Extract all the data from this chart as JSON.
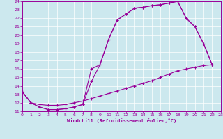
{
  "bg_color": "#cce8ee",
  "line_color": "#990099",
  "grid_color": "#ffffff",
  "xlabel": "Windchill (Refroidissement éolien,°C)",
  "xlim": [
    0,
    23
  ],
  "ylim": [
    11,
    24
  ],
  "xticks": [
    0,
    1,
    2,
    3,
    4,
    5,
    6,
    7,
    8,
    9,
    10,
    11,
    12,
    13,
    14,
    15,
    16,
    17,
    18,
    19,
    20,
    21,
    22,
    23
  ],
  "yticks": [
    11,
    12,
    13,
    14,
    15,
    16,
    17,
    18,
    19,
    20,
    21,
    22,
    23,
    24
  ],
  "curve1_x": [
    0,
    1,
    2,
    3,
    4,
    5,
    6,
    7,
    8,
    9,
    10,
    11,
    12,
    13,
    14,
    15,
    16,
    17,
    18,
    19,
    20,
    21,
    22
  ],
  "curve1_y": [
    13.3,
    12.0,
    11.5,
    11.2,
    11.2,
    11.3,
    11.5,
    11.8,
    14.5,
    16.5,
    19.5,
    21.8,
    22.5,
    23.2,
    23.3,
    23.5,
    23.6,
    23.8,
    24.0,
    22.0,
    21.0,
    19.0,
    16.5
  ],
  "curve2_x": [
    0,
    1,
    2,
    3,
    4,
    5,
    6,
    7,
    8,
    9,
    10,
    11,
    12,
    13,
    14,
    15,
    16,
    17,
    18,
    19,
    20,
    21,
    22
  ],
  "curve2_y": [
    13.3,
    12.0,
    11.5,
    11.2,
    11.2,
    11.3,
    11.5,
    11.8,
    16.0,
    16.5,
    19.5,
    21.8,
    22.5,
    23.2,
    23.3,
    23.5,
    23.6,
    23.8,
    24.0,
    22.0,
    21.0,
    19.0,
    16.5
  ],
  "curve3_x": [
    0,
    1,
    2,
    3,
    4,
    5,
    6,
    7,
    8,
    9,
    10,
    11,
    12,
    13,
    14,
    15,
    16,
    17,
    18,
    19,
    20,
    21,
    22
  ],
  "curve3_y": [
    13.3,
    12.0,
    11.8,
    11.7,
    11.7,
    11.8,
    12.0,
    12.2,
    12.5,
    12.8,
    13.1,
    13.4,
    13.7,
    14.0,
    14.3,
    14.6,
    15.0,
    15.4,
    15.8,
    16.0,
    16.2,
    16.4,
    16.5
  ]
}
